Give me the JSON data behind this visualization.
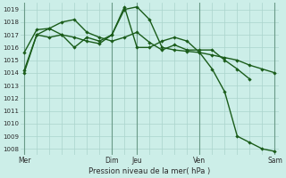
{
  "title": "",
  "xlabel": "Pression niveau de la mer( hPa )",
  "background_color": "#cceee8",
  "grid_color": "#aad4cc",
  "line_color": "#1a5c1a",
  "ylim": [
    1007.5,
    1019.5
  ],
  "yticks": [
    1008,
    1009,
    1010,
    1011,
    1012,
    1013,
    1014,
    1015,
    1016,
    1017,
    1018,
    1019
  ],
  "xlim": [
    -0.3,
    20.3
  ],
  "xtick_labels": [
    "Mer",
    "Dim",
    "Jeu",
    "Ven",
    "Sam"
  ],
  "xtick_positions": [
    0,
    7,
    9,
    14,
    20
  ],
  "vline_positions": [
    0,
    7,
    9,
    14,
    20
  ],
  "series": [
    {
      "x": [
        0,
        1,
        2,
        3,
        4,
        5,
        6,
        7,
        8,
        9,
        10,
        11,
        12,
        13,
        14,
        15,
        16,
        17,
        18,
        19,
        20
      ],
      "y": [
        1014.0,
        1017.0,
        1017.5,
        1017.0,
        1016.8,
        1016.5,
        1016.3,
        1017.0,
        1019.0,
        1019.2,
        1018.2,
        1016.0,
        1015.8,
        1015.7,
        1015.6,
        1015.4,
        1015.2,
        1015.0,
        1014.6,
        1014.3,
        1014.0
      ],
      "linewidth": 1.0,
      "markersize": 2.2
    },
    {
      "x": [
        0,
        1,
        2,
        3,
        4,
        5,
        6,
        7,
        8,
        9,
        10,
        11,
        12,
        13,
        14,
        15,
        16,
        17,
        18
      ],
      "y": [
        1015.6,
        1017.4,
        1017.5,
        1018.0,
        1018.2,
        1017.2,
        1016.8,
        1016.5,
        1016.8,
        1017.2,
        1016.4,
        1015.8,
        1016.2,
        1015.8,
        1015.8,
        1015.8,
        1015.0,
        1014.3,
        1013.5
      ],
      "linewidth": 1.0,
      "markersize": 2.2
    },
    {
      "x": [
        0,
        1,
        2,
        3,
        4,
        5,
        6,
        7,
        8,
        9,
        10,
        11,
        12,
        13,
        14,
        15,
        16,
        17,
        18,
        19,
        20
      ],
      "y": [
        1014.2,
        1017.0,
        1016.8,
        1017.0,
        1016.0,
        1016.8,
        1016.5,
        1017.0,
        1019.2,
        1016.0,
        1016.0,
        1016.5,
        1016.8,
        1016.5,
        1015.6,
        1014.3,
        1012.5,
        1009.0,
        1008.5,
        1008.0,
        1007.8
      ],
      "linewidth": 1.0,
      "markersize": 2.2
    }
  ]
}
